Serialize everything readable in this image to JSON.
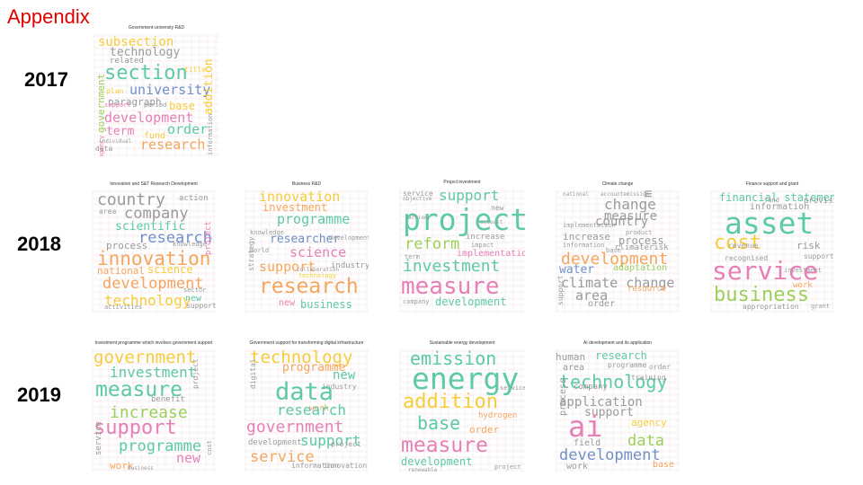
{
  "page": {
    "title": "Appendix"
  },
  "years": [
    "2017",
    "2018",
    "2019"
  ],
  "palette": {
    "teal": "#5cc9a7",
    "pink": "#e680b6",
    "orange": "#f5a55c",
    "yellow": "#f6cc3a",
    "gray": "#9a9a9a",
    "blue": "#6f90c8",
    "green": "#9ccf5a",
    "purple": "#a38dcf",
    "red": "#ee7f7f"
  },
  "clouds": [
    {
      "title": "Government-university R&D",
      "words": [
        {
          "text": "subsection",
          "color": "#f6cc3a"
        },
        {
          "text": "technology",
          "color": "#9a9a9a"
        },
        {
          "text": "related",
          "color": "#9a9a9a"
        },
        {
          "text": "section",
          "color": "#5cc9a7"
        },
        {
          "text": "university",
          "color": "#6f90c8"
        },
        {
          "text": "paragraph",
          "color": "#9a9a9a"
        },
        {
          "text": "base",
          "color": "#f6cc3a"
        },
        {
          "text": "development",
          "color": "#e680b6"
        },
        {
          "text": "term",
          "color": "#e680b6"
        },
        {
          "text": "order",
          "color": "#5cc9a7"
        },
        {
          "text": "fund",
          "color": "#f6cc3a"
        },
        {
          "text": "research",
          "color": "#f5a55c"
        },
        {
          "text": "government",
          "color": "#9ccf5a"
        },
        {
          "text": "addition",
          "color": "#f6cc3a"
        },
        {
          "text": "information",
          "color": "#9a9a9a"
        },
        {
          "text": "data",
          "color": "#9a9a9a"
        },
        {
          "text": "plan",
          "color": "#f6cc3a"
        },
        {
          "text": "agency",
          "color": "#e680b6"
        },
        {
          "text": "title",
          "color": "#f6cc3a"
        },
        {
          "text": "individual",
          "color": "#9a9a9a"
        },
        {
          "text": "support",
          "color": "#e680b6"
        },
        {
          "text": "period",
          "color": "#9a9a9a"
        }
      ]
    },
    {
      "title": "Innovation and S&T Research Development",
      "words": [
        {
          "text": "country",
          "color": "#9a9a9a"
        },
        {
          "text": "action",
          "color": "#9a9a9a"
        },
        {
          "text": "company",
          "color": "#9a9a9a"
        },
        {
          "text": "scientific",
          "color": "#5cc9a7"
        },
        {
          "text": "research",
          "color": "#6f90c8"
        },
        {
          "text": "process",
          "color": "#9a9a9a"
        },
        {
          "text": "knowledge",
          "color": "#9a9a9a"
        },
        {
          "text": "innovation",
          "color": "#f5a55c"
        },
        {
          "text": "national",
          "color": "#f5a55c"
        },
        {
          "text": "science",
          "color": "#f6cc3a"
        },
        {
          "text": "development",
          "color": "#f5a55c"
        },
        {
          "text": "technology",
          "color": "#f6cc3a"
        },
        {
          "text": "new",
          "color": "#5cc9a7"
        },
        {
          "text": "support",
          "color": "#9a9a9a"
        },
        {
          "text": "activities",
          "color": "#9a9a9a"
        },
        {
          "text": "area",
          "color": "#9a9a9a"
        },
        {
          "text": "sector",
          "color": "#9a9a9a"
        },
        {
          "text": "project",
          "color": "#e680b6"
        }
      ]
    },
    {
      "title": "Business R&D",
      "words": [
        {
          "text": "innovation",
          "color": "#f6cc3a"
        },
        {
          "text": "investment",
          "color": "#f5a55c"
        },
        {
          "text": "programme",
          "color": "#5cc9a7"
        },
        {
          "text": "researcher",
          "color": "#6f90c8"
        },
        {
          "text": "science",
          "color": "#e680b6"
        },
        {
          "text": "support",
          "color": "#f5a55c"
        },
        {
          "text": "industry",
          "color": "#9a9a9a"
        },
        {
          "text": "research",
          "color": "#f5a55c"
        },
        {
          "text": "new",
          "color": "#e680b6"
        },
        {
          "text": "business",
          "color": "#5cc9a7"
        },
        {
          "text": "knowledge",
          "color": "#9a9a9a"
        },
        {
          "text": "world",
          "color": "#9a9a9a"
        },
        {
          "text": "technology",
          "color": "#f6cc3a"
        },
        {
          "text": "development",
          "color": "#9a9a9a"
        },
        {
          "text": "collaboration",
          "color": "#9a9a9a"
        },
        {
          "text": "strategy",
          "color": "#9a9a9a"
        }
      ]
    },
    {
      "title": "Project investment",
      "words": [
        {
          "text": "support",
          "color": "#5cc9a7"
        },
        {
          "text": "service",
          "color": "#9a9a9a"
        },
        {
          "text": "project",
          "color": "#5cc9a7"
        },
        {
          "text": "new",
          "color": "#9a9a9a"
        },
        {
          "text": "increase",
          "color": "#9a9a9a"
        },
        {
          "text": "reform",
          "color": "#9ccf5a"
        },
        {
          "text": "impact",
          "color": "#9a9a9a"
        },
        {
          "text": "implementation",
          "color": "#e680b6"
        },
        {
          "text": "investment",
          "color": "#5cc9a7"
        },
        {
          "text": "measure",
          "color": "#e680b6"
        },
        {
          "text": "development",
          "color": "#5cc9a7"
        },
        {
          "text": "company",
          "color": "#9a9a9a"
        },
        {
          "text": "term",
          "color": "#9a9a9a"
        },
        {
          "text": "objective",
          "color": "#9a9a9a"
        },
        {
          "text": "action",
          "color": "#9a9a9a"
        },
        {
          "text": "account",
          "color": "#9a9a9a"
        }
      ]
    },
    {
      "title": "Climate change",
      "words": [
        {
          "text": "national",
          "color": "#9a9a9a"
        },
        {
          "text": "accountemission",
          "color": "#9a9a9a"
        },
        {
          "text": "change",
          "color": "#9a9a9a"
        },
        {
          "text": "management",
          "color": "#9a9a9a"
        },
        {
          "text": "measure",
          "color": "#9a9a9a"
        },
        {
          "text": "country",
          "color": "#9a9a9a"
        },
        {
          "text": "product",
          "color": "#9a9a9a"
        },
        {
          "text": "increase",
          "color": "#9a9a9a"
        },
        {
          "text": "process",
          "color": "#9a9a9a"
        },
        {
          "text": "information",
          "color": "#9a9a9a"
        },
        {
          "text": "climaterisk",
          "color": "#9a9a9a"
        },
        {
          "text": "development",
          "color": "#f5a55c"
        },
        {
          "text": "water",
          "color": "#6f90c8"
        },
        {
          "text": "adaptation",
          "color": "#9ccf5a"
        },
        {
          "text": "climate change",
          "color": "#9a9a9a"
        },
        {
          "text": "area",
          "color": "#9a9a9a"
        },
        {
          "text": "resource",
          "color": "#f5a55c"
        },
        {
          "text": "order",
          "color": "#9a9a9a"
        },
        {
          "text": "support",
          "color": "#9a9a9a"
        },
        {
          "text": "implementation",
          "color": "#9a9a9a"
        },
        {
          "text": "base",
          "color": "#9a9a9a"
        },
        {
          "text": "risk",
          "color": "#9a9a9a"
        }
      ]
    },
    {
      "title": "Finance support and grant",
      "words": [
        {
          "text": "financial statement",
          "color": "#5cc9a7"
        },
        {
          "text": "provision",
          "color": "#9a9a9a"
        },
        {
          "text": "information",
          "color": "#9a9a9a"
        },
        {
          "text": "asset",
          "color": "#5cc9a7"
        },
        {
          "text": "cost",
          "color": "#f6cc3a"
        },
        {
          "text": "risk",
          "color": "#9a9a9a"
        },
        {
          "text": "revenue",
          "color": "#9a9a9a"
        },
        {
          "text": "recognised",
          "color": "#9a9a9a"
        },
        {
          "text": "service",
          "color": "#e680b6"
        },
        {
          "text": "support",
          "color": "#9a9a9a"
        },
        {
          "text": "work",
          "color": "#f5a55c"
        },
        {
          "text": "business",
          "color": "#9ccf5a"
        },
        {
          "text": "appropriation",
          "color": "#9a9a9a"
        },
        {
          "text": "grant",
          "color": "#9a9a9a"
        },
        {
          "text": "investment",
          "color": "#9a9a9a"
        },
        {
          "text": "fund",
          "color": "#9a9a9a"
        }
      ]
    },
    {
      "title": "Investment programme which involves government support",
      "words": [
        {
          "text": "government",
          "color": "#f6cc3a"
        },
        {
          "text": "investment",
          "color": "#5cc9a7"
        },
        {
          "text": "measure",
          "color": "#5cc9a7"
        },
        {
          "text": "benefit",
          "color": "#9a9a9a"
        },
        {
          "text": "increase",
          "color": "#9ccf5a"
        },
        {
          "text": "support",
          "color": "#e680b6"
        },
        {
          "text": "programme",
          "color": "#5cc9a7"
        },
        {
          "text": "new",
          "color": "#e680b6"
        },
        {
          "text": "work",
          "color": "#f5a55c"
        },
        {
          "text": "service",
          "color": "#9a9a9a"
        },
        {
          "text": "business",
          "color": "#9a9a9a"
        },
        {
          "text": "project",
          "color": "#9a9a9a"
        },
        {
          "text": "cost",
          "color": "#9a9a9a"
        }
      ]
    },
    {
      "title": "Government support for transforming digital infrastructure",
      "words": [
        {
          "text": "technology",
          "color": "#f6cc3a"
        },
        {
          "text": "programme",
          "color": "#f5a55c"
        },
        {
          "text": "new",
          "color": "#5cc9a7"
        },
        {
          "text": "industry",
          "color": "#9a9a9a"
        },
        {
          "text": "digital",
          "color": "#9a9a9a"
        },
        {
          "text": "data",
          "color": "#5cc9a7"
        },
        {
          "text": "work",
          "color": "#f5a55c"
        },
        {
          "text": "research",
          "color": "#5cc9a7"
        },
        {
          "text": "government",
          "color": "#e680b6"
        },
        {
          "text": "support",
          "color": "#5cc9a7"
        },
        {
          "text": "development",
          "color": "#9a9a9a"
        },
        {
          "text": "service",
          "color": "#f5a55c"
        },
        {
          "text": "information",
          "color": "#9a9a9a"
        },
        {
          "text": "innovation",
          "color": "#9a9a9a"
        },
        {
          "text": "project",
          "color": "#9a9a9a"
        }
      ]
    },
    {
      "title": "Sustainable energy development",
      "words": [
        {
          "text": "emission",
          "color": "#5cc9a7"
        },
        {
          "text": "energy",
          "color": "#5cc9a7"
        },
        {
          "text": "addition",
          "color": "#f6cc3a"
        },
        {
          "text": "hydrogen",
          "color": "#f5a55c"
        },
        {
          "text": "base",
          "color": "#5cc9a7"
        },
        {
          "text": "order",
          "color": "#f5a55c"
        },
        {
          "text": "measure",
          "color": "#e680b6"
        },
        {
          "text": "development",
          "color": "#5cc9a7"
        },
        {
          "text": "project",
          "color": "#9a9a9a"
        },
        {
          "text": "service",
          "color": "#9a9a9a"
        },
        {
          "text": "renewable",
          "color": "#9a9a9a"
        }
      ]
    },
    {
      "title": "AI development and its application",
      "words": [
        {
          "text": "human",
          "color": "#9a9a9a"
        },
        {
          "text": "research",
          "color": "#5cc9a7"
        },
        {
          "text": "programme",
          "color": "#9a9a9a"
        },
        {
          "text": "area",
          "color": "#9a9a9a"
        },
        {
          "text": "order",
          "color": "#9a9a9a"
        },
        {
          "text": "technology",
          "color": "#5cc9a7"
        },
        {
          "text": "application",
          "color": "#9a9a9a"
        },
        {
          "text": "support",
          "color": "#9a9a9a"
        },
        {
          "text": "agency",
          "color": "#f6cc3a"
        },
        {
          "text": "ai",
          "color": "#e680b6"
        },
        {
          "text": "data",
          "color": "#9ccf5a"
        },
        {
          "text": "field",
          "color": "#9a9a9a"
        },
        {
          "text": "development",
          "color": "#6f90c8"
        },
        {
          "text": "work",
          "color": "#9a9a9a"
        },
        {
          "text": "base",
          "color": "#f5a55c"
        },
        {
          "text": "process",
          "color": "#9a9a9a"
        },
        {
          "text": "company",
          "color": "#9a9a9a"
        },
        {
          "text": "training",
          "color": "#9a9a9a"
        }
      ]
    }
  ]
}
